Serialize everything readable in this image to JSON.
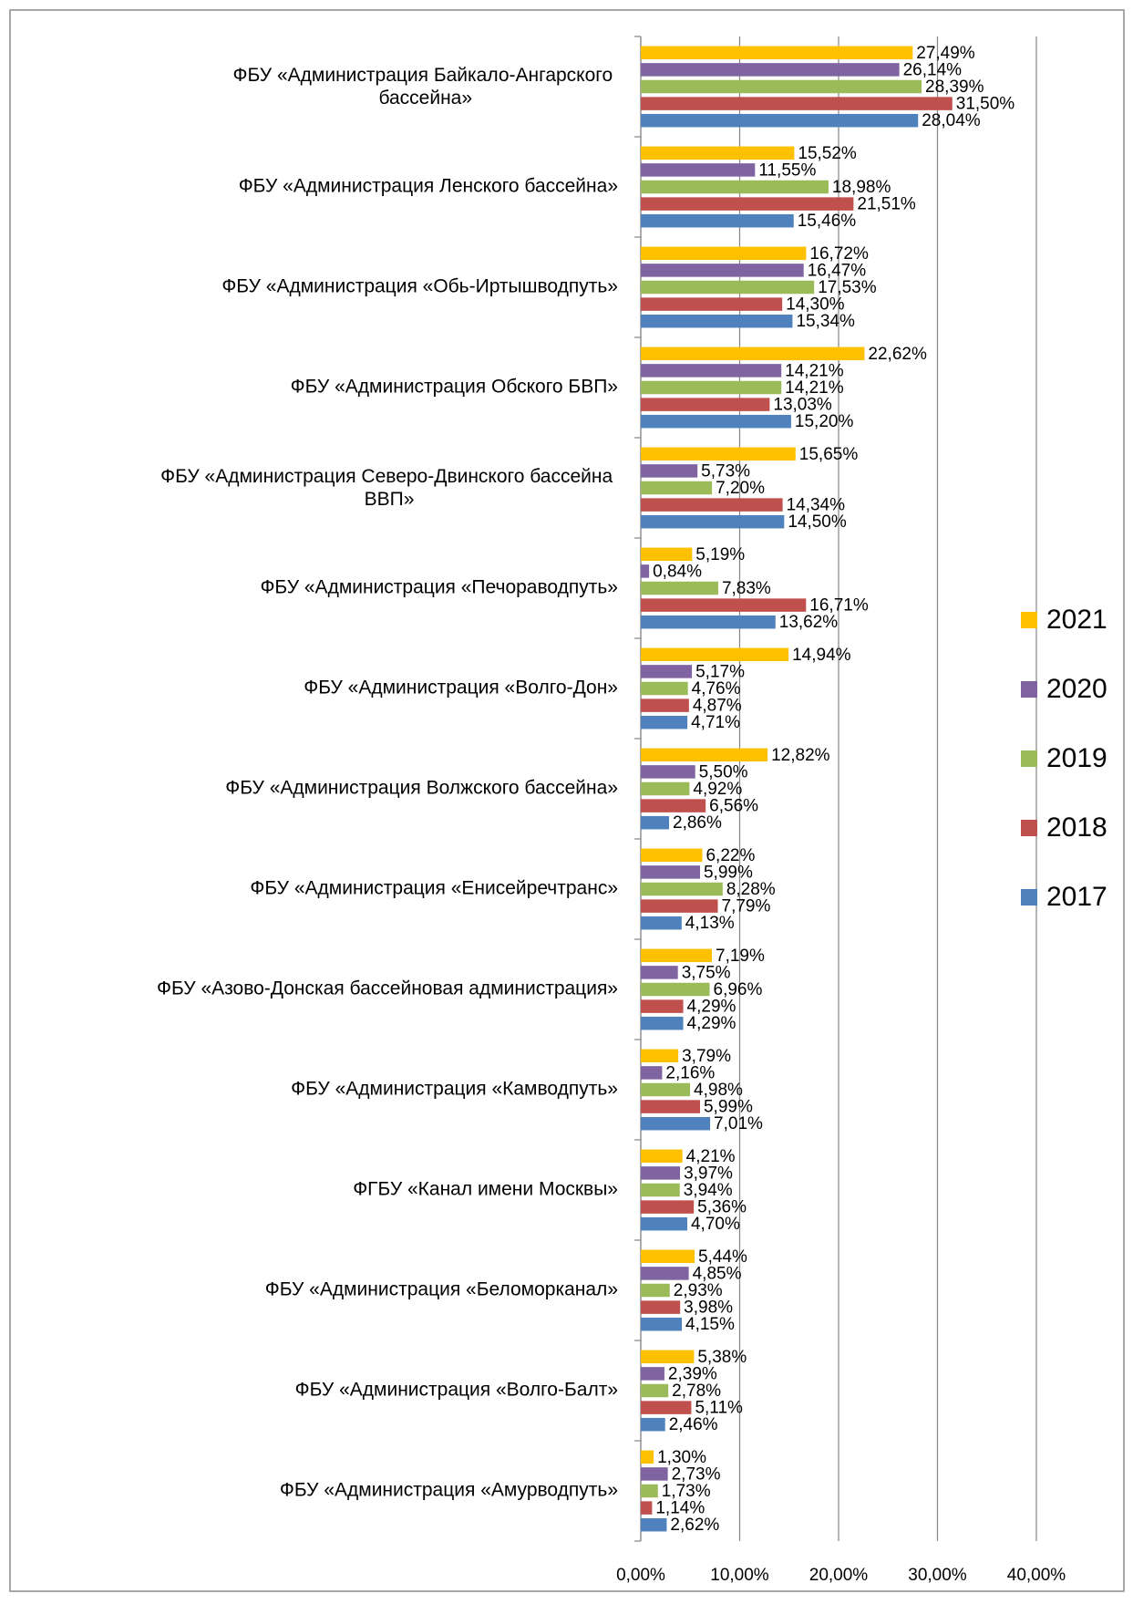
{
  "chart_data": {
    "type": "bar",
    "orientation": "horizontal",
    "categories": [
      "ФБУ «Администрация Байкало-Ангарского бассейна»",
      "ФБУ «Администрация Ленского бассейна»",
      "ФБУ «Администрация «Обь-Иртышводпуть»",
      "ФБУ «Администрация Обского БВП»",
      "ФБУ «Администрация Северо-Двинского бассейна ВВП»",
      "ФБУ «Администрация «Печораводпуть»",
      "ФБУ «Администрация «Волго-Дон»",
      "ФБУ «Администрация Волжского бассейна»",
      "ФБУ «Администрация «Енисейречтранс»",
      "ФБУ «Азово-Донская бассейновая администрация»",
      "ФБУ «Администрация «Камводпуть»",
      "ФГБУ «Канал имени Москвы»",
      "ФБУ «Администрация «Беломорканал»",
      "ФБУ «Администрация «Волго-Балт»",
      "ФБУ «Администрация «Амурводпуть»"
    ],
    "series": [
      {
        "name": "2021",
        "color": "#FFC000",
        "values": [
          27.49,
          15.52,
          16.72,
          22.62,
          15.65,
          5.19,
          14.94,
          12.82,
          6.22,
          7.19,
          3.79,
          4.21,
          5.44,
          5.38,
          1.3
        ],
        "value_labels": [
          "27,49%",
          "15,52%",
          "16,72%",
          "22,62%",
          "15,65%",
          "5,19%",
          "14,94%",
          "12,82%",
          "6,22%",
          "7,19%",
          "3,79%",
          "4,21%",
          "5,44%",
          "5,38%",
          "1,30%"
        ]
      },
      {
        "name": "2020",
        "color": "#8064A2",
        "values": [
          26.14,
          11.55,
          16.47,
          14.21,
          5.73,
          0.84,
          5.17,
          5.5,
          5.99,
          3.75,
          2.16,
          3.97,
          4.85,
          2.39,
          2.73
        ],
        "value_labels": [
          "26,14%",
          "11,55%",
          "16,47%",
          "14,21%",
          "5,73%",
          "0,84%",
          "5,17%",
          "5,50%",
          "5,99%",
          "3,75%",
          "2,16%",
          "3,97%",
          "4,85%",
          "2,39%",
          "2,73%"
        ]
      },
      {
        "name": "2019",
        "color": "#9BBB59",
        "values": [
          28.39,
          18.98,
          17.53,
          14.21,
          7.2,
          7.83,
          4.76,
          4.92,
          8.28,
          6.96,
          4.98,
          3.94,
          2.93,
          2.78,
          1.73
        ],
        "value_labels": [
          "28,39%",
          "18,98%",
          "17,53%",
          "14,21%",
          "7,20%",
          "7,83%",
          "4,76%",
          "4,92%",
          "8,28%",
          "6,96%",
          "4,98%",
          "3,94%",
          "2,93%",
          "2,78%",
          "1,73%"
        ]
      },
      {
        "name": "2018",
        "color": "#C0504D",
        "values": [
          31.5,
          21.51,
          14.3,
          13.03,
          14.34,
          16.71,
          4.87,
          6.56,
          7.79,
          4.29,
          5.99,
          5.36,
          3.98,
          5.11,
          1.14
        ],
        "value_labels": [
          "31,50%",
          "21,51%",
          "14,30%",
          "13,03%",
          "14,34%",
          "16,71%",
          "4,87%",
          "6,56%",
          "7,79%",
          "4,29%",
          "5,99%",
          "5,36%",
          "3,98%",
          "5,11%",
          "1,14%"
        ]
      },
      {
        "name": "2017",
        "color": "#4F81BD",
        "values": [
          28.04,
          15.46,
          15.34,
          15.2,
          14.5,
          13.62,
          4.71,
          2.86,
          4.13,
          4.29,
          7.01,
          4.7,
          4.15,
          2.46,
          2.62
        ],
        "value_labels": [
          "28,04%",
          "15,46%",
          "15,34%",
          "15,20%",
          "14,50%",
          "13,62%",
          "4,71%",
          "2,86%",
          "4,13%",
          "4,29%",
          "7,01%",
          "4,70%",
          "4,15%",
          "2,46%",
          "2,62%"
        ]
      }
    ],
    "xlim": [
      0,
      40
    ],
    "xticks": [
      {
        "value": 0,
        "label": "0,00%"
      },
      {
        "value": 10,
        "label": "10,00%"
      },
      {
        "value": 20,
        "label": "20,00%"
      },
      {
        "value": 30,
        "label": "30,00%"
      },
      {
        "value": 40,
        "label": "40,00%"
      }
    ],
    "grid": true,
    "legend": "right"
  }
}
